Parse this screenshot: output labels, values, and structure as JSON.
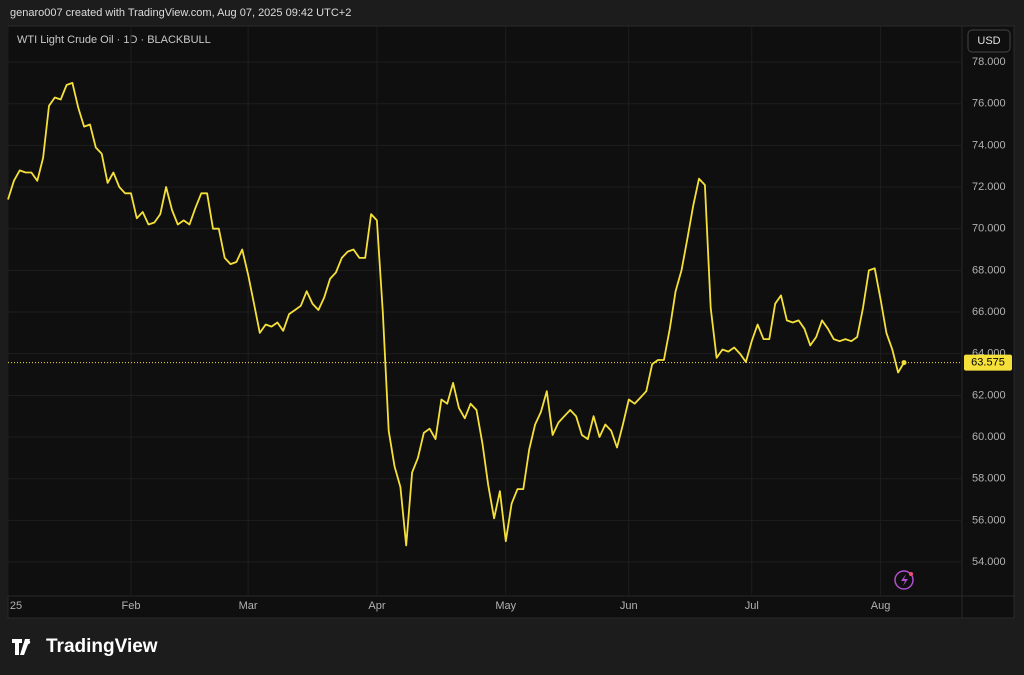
{
  "chart_data": {
    "type": "line",
    "caption": "genaro007 created with TradingView.com, Aug 07, 2025 09:42 UTC+2",
    "title": "WTI Light Crude Oil · 1D · BLACKBULL",
    "currency": "USD",
    "brand": "TradingView",
    "color": "#f5e03a",
    "grid": true,
    "categories": [
      "25",
      null,
      null,
      null,
      null,
      null,
      null,
      null,
      null,
      null,
      null,
      null,
      null,
      null,
      null,
      null,
      null,
      null,
      null,
      null,
      null,
      "Feb",
      null,
      null,
      null,
      null,
      null,
      null,
      null,
      null,
      null,
      null,
      null,
      null,
      null,
      null,
      null,
      null,
      null,
      null,
      null,
      "Mar",
      null,
      null,
      null,
      null,
      null,
      null,
      null,
      null,
      null,
      null,
      null,
      null,
      null,
      null,
      null,
      null,
      null,
      null,
      null,
      null,
      null,
      "Apr",
      null,
      null,
      null,
      null,
      null,
      null,
      null,
      null,
      null,
      null,
      null,
      null,
      null,
      null,
      null,
      null,
      null,
      null,
      null,
      null,
      null,
      "May",
      null,
      null,
      null,
      null,
      null,
      null,
      null,
      null,
      null,
      null,
      null,
      null,
      null,
      null,
      null,
      null,
      null,
      null,
      null,
      null,
      "Jun",
      null,
      null,
      null,
      null,
      null,
      null,
      null,
      null,
      null,
      null,
      null,
      null,
      null,
      null,
      null,
      null,
      null,
      null,
      null,
      null,
      "Jul",
      null,
      null,
      null,
      null,
      null,
      null,
      null,
      null,
      null,
      null,
      null,
      null,
      null,
      null,
      null,
      null,
      null,
      null,
      null,
      null,
      null,
      "Aug",
      null,
      null,
      null,
      null
    ],
    "values": [
      71.4,
      72.3,
      72.8,
      72.7,
      72.7,
      72.3,
      73.4,
      75.9,
      76.3,
      76.2,
      76.9,
      77.0,
      75.8,
      74.9,
      75.0,
      73.9,
      73.6,
      72.2,
      72.7,
      72.0,
      71.7,
      71.7,
      70.5,
      70.8,
      70.2,
      70.3,
      70.7,
      72.0,
      70.9,
      70.2,
      70.4,
      70.2,
      71.0,
      71.7,
      71.7,
      70.0,
      70.0,
      68.6,
      68.3,
      68.4,
      69.0,
      67.8,
      66.4,
      65.0,
      65.4,
      65.3,
      65.5,
      65.1,
      65.9,
      66.1,
      66.3,
      67.0,
      66.4,
      66.1,
      66.7,
      67.6,
      67.9,
      68.6,
      68.9,
      69.0,
      68.6,
      68.6,
      70.7,
      70.4,
      66.0,
      60.3,
      58.6,
      57.6,
      54.8,
      58.3,
      59.0,
      60.2,
      60.4,
      59.9,
      61.8,
      61.6,
      62.6,
      61.4,
      60.9,
      61.6,
      61.3,
      59.7,
      57.7,
      56.1,
      57.4,
      55.0,
      56.8,
      57.5,
      57.5,
      59.4,
      60.6,
      61.2,
      62.2,
      60.1,
      60.7,
      61.0,
      61.3,
      61.0,
      60.1,
      59.9,
      61.0,
      60.0,
      60.6,
      60.3,
      59.5,
      60.6,
      61.8,
      61.6,
      61.9,
      62.2,
      63.5,
      63.7,
      63.7,
      65.2,
      67.0,
      68.0,
      69.5,
      71.1,
      72.4,
      72.1,
      66.2,
      63.8,
      64.2,
      64.1,
      64.3,
      64.0,
      63.6,
      64.6,
      65.4,
      64.7,
      64.7,
      66.4,
      66.8,
      65.6,
      65.5,
      65.6,
      65.2,
      64.4,
      64.8,
      65.6,
      65.2,
      64.7,
      64.6,
      64.7,
      64.6,
      64.8,
      66.2,
      68.0,
      68.1,
      66.6,
      65.0,
      64.2,
      63.1,
      63.575
    ],
    "ylim": [
      52.37,
      79.73
    ],
    "yticks": [
      {
        "value": 54,
        "label": "54.000"
      },
      {
        "value": 56,
        "label": "56.000"
      },
      {
        "value": 58,
        "label": "58.000"
      },
      {
        "value": 60,
        "label": "60.000"
      },
      {
        "value": 62,
        "label": "62.000"
      },
      {
        "value": 64,
        "label": "64.000"
      },
      {
        "value": 66,
        "label": "66.000"
      },
      {
        "value": 68,
        "label": "68.000"
      },
      {
        "value": 70,
        "label": "70.000"
      },
      {
        "value": 72,
        "label": "72.000"
      },
      {
        "value": 74,
        "label": "74.000"
      },
      {
        "value": 76,
        "label": "76.000"
      },
      {
        "value": 78,
        "label": "78.000"
      }
    ]
  }
}
